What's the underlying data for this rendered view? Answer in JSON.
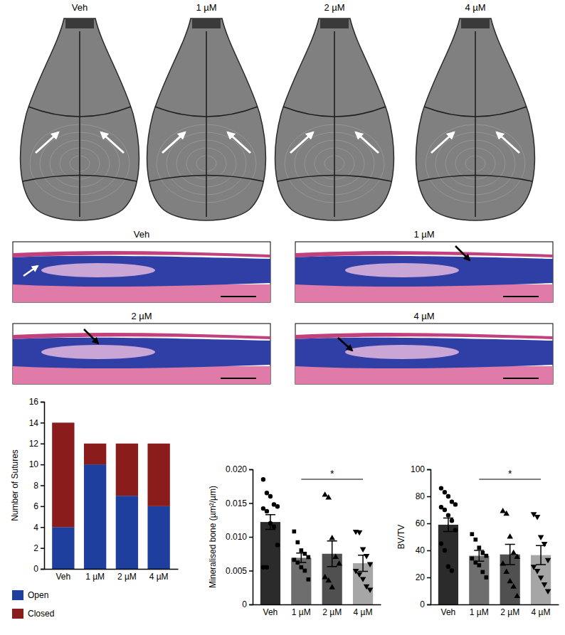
{
  "images": {
    "micro_ct": {
      "labels": [
        "Veh",
        "1 µM",
        "2 µM",
        "4 µM"
      ]
    },
    "histology": {
      "labels": [
        "Veh",
        "1 µM",
        "2 µM",
        "4 µM"
      ]
    }
  },
  "chart_data": [
    {
      "type": "bar",
      "stacked": true,
      "categories": [
        "Veh",
        "1 µM",
        "2 µM",
        "4 µM"
      ],
      "series": [
        {
          "name": "Open",
          "color": "#1f3f9e",
          "values": [
            4,
            10,
            7,
            6
          ]
        },
        {
          "name": "Closed",
          "color": "#8a1c1c",
          "values": [
            10,
            2,
            5,
            6
          ]
        }
      ],
      "ylabel": "Number of Sutures",
      "ylim": [
        0,
        16
      ],
      "yticks": [
        0,
        2,
        4,
        6,
        8,
        10,
        12,
        14,
        16
      ],
      "legend": "bottom"
    },
    {
      "type": "bar",
      "categories": [
        "Veh",
        "1 µM",
        "2 µM",
        "4 µM"
      ],
      "values": [
        0.0122,
        0.0069,
        0.0075,
        0.0061
      ],
      "errors": [
        0.0011,
        0.0007,
        0.0019,
        0.0012
      ],
      "points": [
        [
          0.0185,
          0.0165,
          0.016,
          0.0148,
          0.0145,
          0.0142,
          0.0138,
          0.012,
          0.0115,
          0.0088,
          0.0055,
          0.0055
        ],
        [
          0.0108,
          0.0092,
          0.008,
          0.0075,
          0.007,
          0.0066,
          0.0062,
          0.0055,
          0.005,
          0.0037
        ],
        [
          0.0162,
          0.0158,
          0.0098,
          0.007,
          0.006,
          0.004,
          0.0035,
          0.0025
        ],
        [
          0.0108,
          0.0107,
          0.0082,
          0.0072,
          0.006,
          0.005,
          0.0045,
          0.0038,
          0.0027,
          0.0022
        ]
      ],
      "colors": [
        "#2b2b2b",
        "#6e6e6e",
        "#505050",
        "#a6a6a6"
      ],
      "ylabel": "Mineralised bone (µm²/µm)",
      "ylim": [
        0,
        0.02
      ],
      "yticks": [
        0,
        0.005,
        {
          "value": 0.01,
          "label": "0.010"
        },
        0.015,
        {
          "value": 0.02,
          "label": "0.020"
        }
      ],
      "annotations": [
        {
          "text": "*",
          "from": "1 µM",
          "to": "4 µM"
        }
      ]
    },
    {
      "type": "bar",
      "categories": [
        "Veh",
        "1 µM",
        "2 µM",
        "4 µM"
      ],
      "values": [
        59,
        36,
        37,
        36.5
      ],
      "errors": [
        5,
        4,
        7.5,
        7
      ],
      "points": [
        [
          86,
          83,
          80,
          76,
          74,
          72,
          70,
          66,
          62,
          55,
          45,
          40,
          28,
          25
        ],
        [
          52,
          48,
          42,
          38,
          36,
          34,
          31,
          29,
          24,
          20
        ],
        [
          69,
          67,
          50,
          38,
          35,
          30,
          24,
          17,
          13,
          6
        ],
        [
          67,
          65,
          50,
          45,
          33,
          28,
          25,
          20,
          15,
          10
        ]
      ],
      "colors": [
        "#2b2b2b",
        "#6e6e6e",
        "#505050",
        "#a6a6a6"
      ],
      "ylabel": "BV/TV",
      "ylim": [
        0,
        100
      ],
      "yticks": [
        0,
        20,
        40,
        60,
        80,
        100
      ],
      "annotations": [
        {
          "text": "*",
          "from": "1 µM",
          "to": "4 µM"
        }
      ]
    }
  ]
}
